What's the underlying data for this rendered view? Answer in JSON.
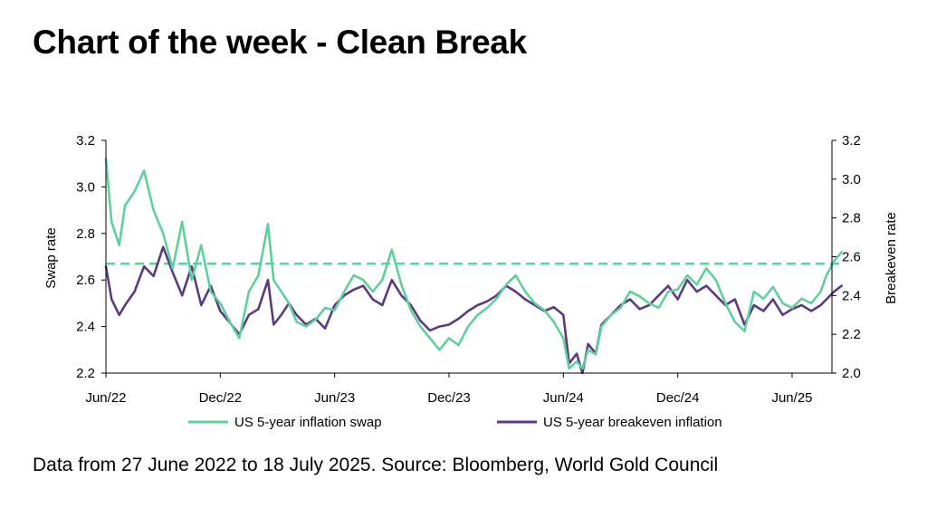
{
  "page": {
    "title": "Chart of the week - Clean Break",
    "footer": "Data from 27 June 2022 to 18 July 2025. Source: Bloomberg, World Gold Council"
  },
  "colors": {
    "swap": "#5fcf9c",
    "breakeven": "#5b3a82",
    "axis": "#000000",
    "reference": "#5fcf9c"
  },
  "chart_data": {
    "type": "line",
    "title": "Chart of the week - Clean Break",
    "xlabel": "",
    "ylabel": "Swap rate",
    "ylabel_right": "Breakeven rate",
    "ylim": [
      2.2,
      3.2
    ],
    "ylim_right": [
      2.0,
      3.2
    ],
    "yticks": [
      "2.2",
      "2.4",
      "2.6",
      "2.8",
      "3.0",
      "3.2"
    ],
    "yticks_right": [
      "2.0",
      "2.2",
      "2.4",
      "2.6",
      "2.8",
      "3.0",
      "3.2"
    ],
    "x_tick_labels": [
      "Jun/22",
      "Dec/22",
      "Jun/23",
      "Dec/23",
      "Jun/24",
      "Dec/24",
      "Jun/25"
    ],
    "x_tick_positions_months": [
      0,
      6,
      12,
      18,
      24,
      30,
      36
    ],
    "x_range_months": [
      0,
      38.7
    ],
    "reference_line": {
      "axis": "left",
      "value": 2.67,
      "style": "dashed",
      "series": "US 5-year inflation swap"
    },
    "legend": [
      "US 5-year inflation swap",
      "US 5-year breakeven inflation"
    ],
    "legend_position": "bottom",
    "series": [
      {
        "name": "US 5-year inflation swap",
        "axis": "left",
        "x_months": [
          0,
          0.3,
          0.7,
          1.0,
          1.5,
          2.0,
          2.5,
          3.0,
          3.5,
          4.0,
          4.5,
          5.0,
          5.5,
          6.0,
          6.5,
          7.0,
          7.5,
          8.0,
          8.5,
          8.8,
          9.2,
          9.6,
          10.0,
          10.5,
          11.0,
          11.5,
          12.0,
          12.5,
          13.0,
          13.5,
          14.0,
          14.5,
          15.0,
          15.5,
          16.0,
          16.5,
          17.0,
          17.5,
          18.0,
          18.5,
          19.0,
          19.5,
          20.0,
          20.5,
          21.0,
          21.5,
          22.0,
          22.5,
          23.0,
          23.5,
          24.0,
          24.3,
          24.7,
          25.0,
          25.3,
          25.7,
          26.0,
          26.5,
          27.0,
          27.5,
          28.0,
          28.5,
          29.0,
          29.5,
          30.0,
          30.5,
          31.0,
          31.5,
          32.0,
          32.5,
          33.0,
          33.5,
          34.0,
          34.5,
          35.0,
          35.5,
          36.0,
          36.5,
          37.0,
          37.5,
          37.8,
          38.2,
          38.6
        ],
        "values": [
          3.12,
          2.85,
          2.75,
          2.92,
          2.98,
          3.07,
          2.9,
          2.8,
          2.65,
          2.85,
          2.6,
          2.75,
          2.55,
          2.5,
          2.42,
          2.35,
          2.55,
          2.62,
          2.84,
          2.6,
          2.55,
          2.5,
          2.42,
          2.4,
          2.43,
          2.48,
          2.47,
          2.55,
          2.62,
          2.6,
          2.55,
          2.6,
          2.73,
          2.58,
          2.47,
          2.4,
          2.35,
          2.3,
          2.35,
          2.32,
          2.4,
          2.45,
          2.48,
          2.52,
          2.58,
          2.62,
          2.55,
          2.5,
          2.47,
          2.42,
          2.35,
          2.22,
          2.25,
          2.22,
          2.3,
          2.28,
          2.4,
          2.45,
          2.48,
          2.55,
          2.53,
          2.5,
          2.48,
          2.55,
          2.56,
          2.62,
          2.58,
          2.65,
          2.6,
          2.5,
          2.42,
          2.38,
          2.55,
          2.52,
          2.57,
          2.5,
          2.48,
          2.52,
          2.5,
          2.55,
          2.62,
          2.68,
          2.72
        ]
      },
      {
        "name": "US 5-year breakeven inflation",
        "axis": "right",
        "x_months": [
          0,
          0.3,
          0.7,
          1.0,
          1.5,
          2.0,
          2.5,
          3.0,
          3.5,
          4.0,
          4.5,
          5.0,
          5.5,
          6.0,
          6.5,
          7.0,
          7.5,
          8.0,
          8.5,
          8.8,
          9.2,
          9.6,
          10.0,
          10.5,
          11.0,
          11.5,
          12.0,
          12.5,
          13.0,
          13.5,
          14.0,
          14.5,
          15.0,
          15.5,
          16.0,
          16.5,
          17.0,
          17.5,
          18.0,
          18.5,
          19.0,
          19.5,
          20.0,
          20.5,
          21.0,
          21.5,
          22.0,
          22.5,
          23.0,
          23.5,
          24.0,
          24.3,
          24.7,
          25.0,
          25.3,
          25.7,
          26.0,
          26.5,
          27.0,
          27.5,
          28.0,
          28.5,
          29.0,
          29.5,
          30.0,
          30.5,
          31.0,
          31.5,
          32.0,
          32.5,
          33.0,
          33.5,
          34.0,
          34.5,
          35.0,
          35.5,
          36.0,
          36.5,
          37.0,
          37.5,
          37.8,
          38.2,
          38.6
        ],
        "values": [
          2.55,
          2.38,
          2.3,
          2.35,
          2.42,
          2.55,
          2.5,
          2.65,
          2.52,
          2.4,
          2.55,
          2.35,
          2.45,
          2.32,
          2.26,
          2.2,
          2.3,
          2.33,
          2.48,
          2.25,
          2.3,
          2.36,
          2.3,
          2.25,
          2.28,
          2.23,
          2.35,
          2.4,
          2.43,
          2.45,
          2.38,
          2.35,
          2.48,
          2.4,
          2.35,
          2.27,
          2.22,
          2.24,
          2.25,
          2.28,
          2.32,
          2.35,
          2.37,
          2.4,
          2.45,
          2.42,
          2.38,
          2.35,
          2.32,
          2.34,
          2.3,
          2.05,
          2.1,
          2.0,
          2.15,
          2.1,
          2.25,
          2.3,
          2.35,
          2.38,
          2.33,
          2.35,
          2.4,
          2.45,
          2.38,
          2.48,
          2.42,
          2.45,
          2.4,
          2.35,
          2.38,
          2.25,
          2.35,
          2.32,
          2.38,
          2.3,
          2.33,
          2.35,
          2.32,
          2.35,
          2.38,
          2.42,
          2.45
        ]
      }
    ]
  }
}
